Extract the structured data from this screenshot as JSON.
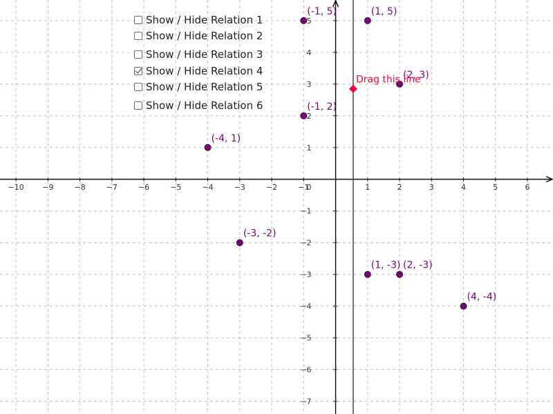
{
  "checkboxes": [
    {
      "label": "Show / Hide Relation 1",
      "checked": false
    },
    {
      "label": "Show / Hide Relation 2",
      "checked": false
    },
    {
      "label": "Show / Hide Relation 3",
      "checked": false
    },
    {
      "label": "Show / Hide Relation 4",
      "checked": true
    },
    {
      "label": "Show / Hide Relation 5",
      "checked": false
    },
    {
      "label": "Show / Hide Relation 6",
      "checked": false
    }
  ],
  "colors": {
    "point_fill": "#800080",
    "point_label": "#800080",
    "drag_point": "#ff0040",
    "grid": "#c0c0c0",
    "axis": "#000000"
  },
  "chart_data": {
    "type": "scatter",
    "xlim": [
      -10.5,
      6.8
    ],
    "ylim": [
      -7.4,
      5.65
    ],
    "grid": true,
    "x_ticks": [
      -10,
      -9,
      -8,
      -7,
      -6,
      -5,
      -4,
      -3,
      -2,
      -1,
      1,
      2,
      3,
      4,
      5,
      6
    ],
    "y_ticks": [
      -7,
      -6,
      -5,
      -4,
      -3,
      -2,
      -1,
      1,
      2,
      3,
      4,
      5
    ],
    "origin_label": "0",
    "points": [
      {
        "x": -1,
        "y": 5,
        "label": "(-1, 5)"
      },
      {
        "x": 1,
        "y": 5,
        "label": "(1, 5)"
      },
      {
        "x": 2,
        "y": 3,
        "label": "(2, 3)"
      },
      {
        "x": -1,
        "y": 2,
        "label": "(-1, 2)"
      },
      {
        "x": -4,
        "y": 1,
        "label": "(-4, 1)"
      },
      {
        "x": -3,
        "y": -2,
        "label": "(-3, -2)"
      },
      {
        "x": 1,
        "y": -3,
        "label": "(1, -3)"
      },
      {
        "x": 2,
        "y": -3,
        "label": "(2, -3)"
      },
      {
        "x": 4,
        "y": -4,
        "label": "(4, -4)"
      }
    ],
    "vertical_line": {
      "x": 0.55
    },
    "drag_point": {
      "x": 0.55,
      "y": 2.85,
      "label": "Drag this line"
    }
  }
}
